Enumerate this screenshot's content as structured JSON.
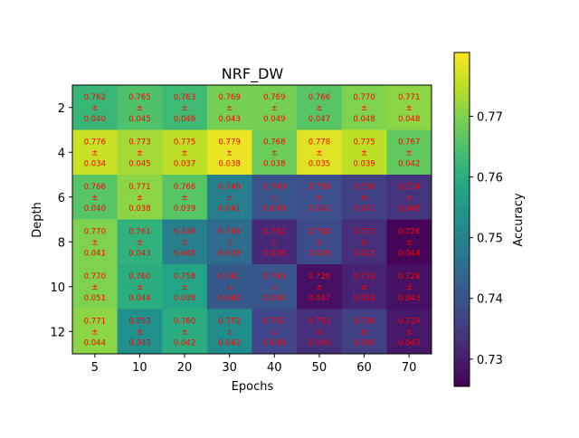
{
  "chart_data": {
    "type": "heatmap",
    "title": "NRF_DW",
    "xlabel": "Epochs",
    "ylabel": "Depth",
    "colorbar_label": "Accuracy",
    "colormap": "viridis",
    "annotation_color": "#ff0000",
    "x": [
      "5",
      "10",
      "20",
      "30",
      "40",
      "50",
      "60",
      "70"
    ],
    "y": [
      "2",
      "4",
      "6",
      "8",
      "10",
      "12"
    ],
    "mean": [
      [
        "0.762",
        "0.765",
        "0.763",
        "0.769",
        "0.769",
        "0.766",
        "0.770",
        "0.771"
      ],
      [
        "0.776",
        "0.773",
        "0.775",
        "0.779",
        "0.768",
        "0.778",
        "0.775",
        "0.767"
      ],
      [
        "0.766",
        "0.771",
        "0.766",
        "0.749",
        "0.740",
        "0.739",
        "0.736",
        "0.734"
      ],
      [
        "0.770",
        "0.761",
        "0.749",
        "0.745",
        "0.732",
        "0.738",
        "0.733",
        "0.726"
      ],
      [
        "0.770",
        "0.760",
        "0.758",
        "0.741",
        "0.740",
        "0.728",
        "0.731",
        "0.728"
      ],
      [
        "0.771",
        "0.753",
        "0.760",
        "0.752",
        "0.737",
        "0.733",
        "0.736",
        "0.729"
      ]
    ],
    "std": [
      [
        "0.040",
        "0.045",
        "0.046",
        "0.043",
        "0.049",
        "0.047",
        "0.048",
        "0.048"
      ],
      [
        "0.034",
        "0.045",
        "0.037",
        "0.038",
        "0.038",
        "0.035",
        "0.039",
        "0.042"
      ],
      [
        "0.040",
        "0.038",
        "0.039",
        "0.041",
        "0.040",
        "0.042",
        "0.043",
        "0.048"
      ],
      [
        "0.041",
        "0.043",
        "0.045",
        "0.039",
        "0.038",
        "0.049",
        "0.042",
        "0.044"
      ],
      [
        "0.051",
        "0.044",
        "0.038",
        "0.042",
        "0.044",
        "0.047",
        "0.051",
        "0.043"
      ],
      [
        "0.044",
        "0.043",
        "0.042",
        "0.042",
        "0.048",
        "0.048",
        "0.050",
        "0.043"
      ]
    ],
    "separator": "±",
    "vmin": 0.7255,
    "vmax": 0.7805,
    "colorbar_ticks": [
      "0.73",
      "0.74",
      "0.75",
      "0.76",
      "0.77"
    ]
  }
}
